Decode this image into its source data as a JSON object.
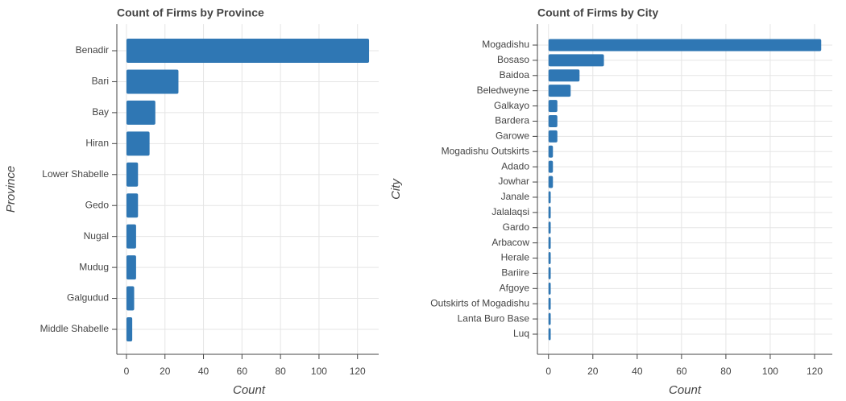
{
  "chart_data": [
    {
      "type": "bar",
      "orientation": "horizontal",
      "title": "Count of Firms by Province",
      "xlabel": "Count",
      "ylabel": "Province",
      "categories": [
        "Benadir",
        "Bari",
        "Bay",
        "Hiran",
        "Lower Shabelle",
        "Gedo",
        "Nugal",
        "Mudug",
        "Galgudud",
        "Middle Shabelle"
      ],
      "values": [
        126,
        27,
        15,
        12,
        6,
        6,
        5,
        5,
        4,
        3
      ],
      "color": "#2f77b4",
      "xlim": [
        -5,
        131
      ],
      "xticks": [
        0,
        20,
        40,
        60,
        80,
        100,
        120
      ],
      "grid": true
    },
    {
      "type": "bar",
      "orientation": "horizontal",
      "title": "Count of Firms by City",
      "xlabel": "Count",
      "ylabel": "City",
      "categories": [
        "Mogadishu",
        "Bosaso",
        "Baidoa",
        "Beledweyne",
        "Galkayo",
        "Bardera",
        "Garowe",
        "Mogadishu Outskirts",
        "Adado",
        "Jowhar",
        "Janale",
        "Jalalaqsi",
        "Gardo",
        "Arbacow",
        "Herale",
        "Bariire",
        "Afgoye",
        "Outskirts of Mogadishu",
        "Lanta Buro Base",
        "Luq"
      ],
      "values": [
        123,
        25,
        14,
        10,
        4,
        4,
        4,
        2,
        2,
        2,
        1,
        1,
        1,
        1,
        1,
        1,
        1,
        1,
        1,
        1
      ],
      "color": "#2f77b4",
      "xlim": [
        -5,
        128
      ],
      "xticks": [
        0,
        20,
        40,
        60,
        80,
        100,
        120
      ],
      "grid": true
    }
  ]
}
